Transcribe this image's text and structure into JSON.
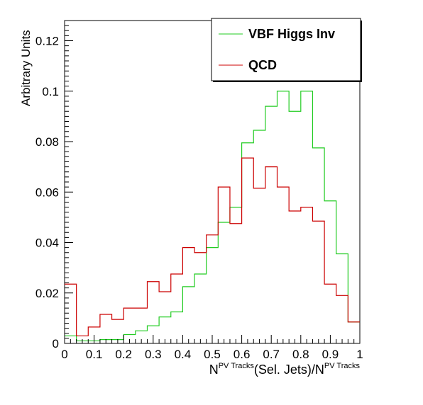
{
  "chart_data": {
    "type": "line",
    "xlabel_parts": [
      "N",
      "PV Tracks",
      "(Sel. Jets)/N",
      "PV Tracks"
    ],
    "ylabel": "Arbitrary Units",
    "xlim": [
      0,
      1
    ],
    "ylim": [
      0,
      0.128
    ],
    "x_ticks": [
      0,
      0.1,
      0.2,
      0.3,
      0.4,
      0.5,
      0.6,
      0.7,
      0.8,
      0.9,
      1
    ],
    "x_tick_labels": [
      "0",
      "0.1",
      "0.2",
      "0.3",
      "0.4",
      "0.5",
      "0.6",
      "0.7",
      "0.8",
      "0.9",
      "1"
    ],
    "y_ticks": [
      0,
      0.02,
      0.04,
      0.06,
      0.08,
      0.1,
      0.12
    ],
    "y_tick_labels": [
      "0",
      "0.02",
      "0.04",
      "0.06",
      "0.08",
      "0.1",
      "0.12"
    ],
    "grid": false,
    "legend_position": "top-right",
    "bin_edges": [
      0,
      0.04,
      0.08,
      0.12,
      0.16,
      0.2,
      0.24,
      0.28,
      0.32,
      0.36,
      0.4,
      0.44,
      0.48,
      0.52,
      0.56,
      0.6,
      0.64,
      0.68,
      0.72,
      0.76,
      0.8,
      0.84,
      0.88,
      0.92,
      0.96,
      1.0
    ],
    "series": [
      {
        "name": "VBF Higgs Inv",
        "color": "#22cc22",
        "values": [
          0.003,
          0.001,
          0.001,
          0.0015,
          0.0015,
          0.0035,
          0.005,
          0.007,
          0.0105,
          0.0125,
          0.0225,
          0.0275,
          0.038,
          0.048,
          0.054,
          0.0795,
          0.0845,
          0.094,
          0.1,
          0.092,
          0.1,
          0.0775,
          0.0565,
          0.0355,
          0.0085
        ]
      },
      {
        "name": "QCD",
        "color": "#cc0000",
        "values": [
          0.0235,
          0.003,
          0.0065,
          0.0115,
          0.0095,
          0.014,
          0.014,
          0.0245,
          0.0205,
          0.0275,
          0.038,
          0.036,
          0.043,
          0.062,
          0.0475,
          0.0735,
          0.0615,
          0.07,
          0.062,
          0.0525,
          0.054,
          0.0485,
          0.0235,
          0.019,
          0.0085
        ]
      }
    ]
  }
}
